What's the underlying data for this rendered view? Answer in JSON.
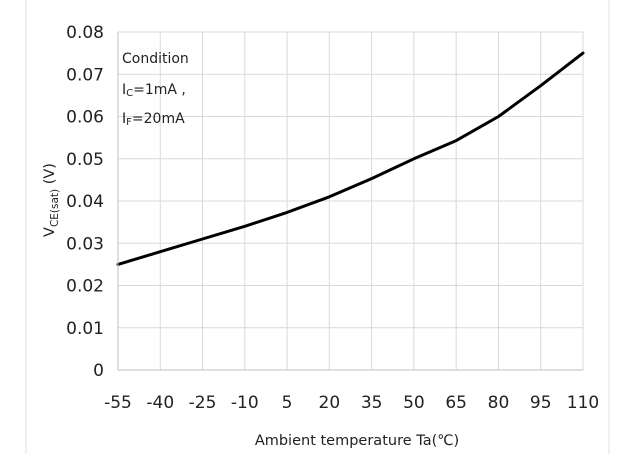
{
  "chart_data": {
    "type": "line",
    "title": "",
    "xlabel": "Ambient temperature Ta(℃)",
    "ylabel": {
      "main": "V",
      "subscript": "CE(sat)",
      "unit": " (V)"
    },
    "xlim": [
      -55,
      110
    ],
    "ylim": [
      0,
      0.08
    ],
    "x_ticks": [
      -55,
      -40,
      -25,
      -10,
      5,
      20,
      35,
      50,
      65,
      80,
      95,
      110
    ],
    "y_ticks": [
      0,
      0.01,
      0.02,
      0.03,
      0.04,
      0.05,
      0.06,
      0.07,
      0.08
    ],
    "y_tick_labels": [
      "0",
      "0.01",
      "0.02",
      "0.03",
      "0.04",
      "0.05",
      "0.06",
      "0.07",
      "0.08"
    ],
    "grid": true,
    "legend": "none",
    "series": [
      {
        "color": "#000000",
        "x": [
          -55,
          -40,
          -25,
          -10,
          5,
          20,
          35,
          50,
          65,
          80,
          95,
          110
        ],
        "y": [
          0.025,
          0.028,
          0.031,
          0.034,
          0.0373,
          0.041,
          0.0453,
          0.05,
          0.0543,
          0.06,
          0.0673,
          0.075
        ]
      }
    ],
    "annotation": {
      "title": "Condition",
      "lines": [
        {
          "main": "I",
          "sub": "C",
          "rest": "=1mA ,"
        },
        {
          "main": "I",
          "sub": "F",
          "rest": "=20mA"
        }
      ]
    },
    "colors": {
      "grid": "#d9d9d9",
      "axis": "#bfbfbf",
      "line": "#000000"
    }
  }
}
